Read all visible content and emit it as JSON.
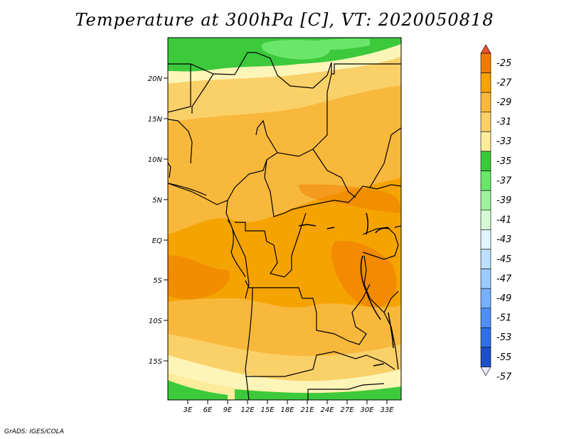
{
  "title": "Temperature at 300hPa [C], VT: 2020050818",
  "credit": "GrADS: IGES/COLA",
  "map": {
    "lat_labels": [
      "20N",
      "15N",
      "10N",
      "5N",
      "EQ",
      "5S",
      "10S",
      "15S"
    ],
    "lon_labels": [
      "3E",
      "6E",
      "9E",
      "12E",
      "15E",
      "18E",
      "21E",
      "24E",
      "27E",
      "30E",
      "33E"
    ]
  },
  "colorbar": {
    "labels": [
      "-25",
      "-27",
      "-29",
      "-31",
      "-33",
      "-35",
      "-37",
      "-39",
      "-41",
      "-43",
      "-45",
      "-47",
      "-49",
      "-51",
      "-53",
      "-55",
      "-57"
    ],
    "colors": [
      "#f0502a",
      "#f07b00",
      "#f5a300",
      "#f8b83c",
      "#fad069",
      "#fcec9c",
      "#fdf5b8",
      "#3cc93c",
      "#6ae66a",
      "#9ff29f",
      "#d6fad6",
      "#e2f4ff",
      "#bde0ff",
      "#9dcbff",
      "#77b0ff",
      "#4f8ff5",
      "#2f6fe3",
      "#1c4fc7",
      "#0c2e9e",
      "#05095f"
    ],
    "colors_in_order": [
      "#f0502a",
      "#f07b00",
      "#f5a300",
      "#f8b83c",
      "#fad069",
      "#fcec9c",
      "#3cc93c",
      "#6ae66a",
      "#9ff29f",
      "#d6fad6",
      "#e2f4ff",
      "#bde0ff",
      "#9dcbff",
      "#77b0ff",
      "#4f8ff5",
      "#2f6fe3",
      "#1c4fc7",
      "#05095f"
    ]
  }
}
